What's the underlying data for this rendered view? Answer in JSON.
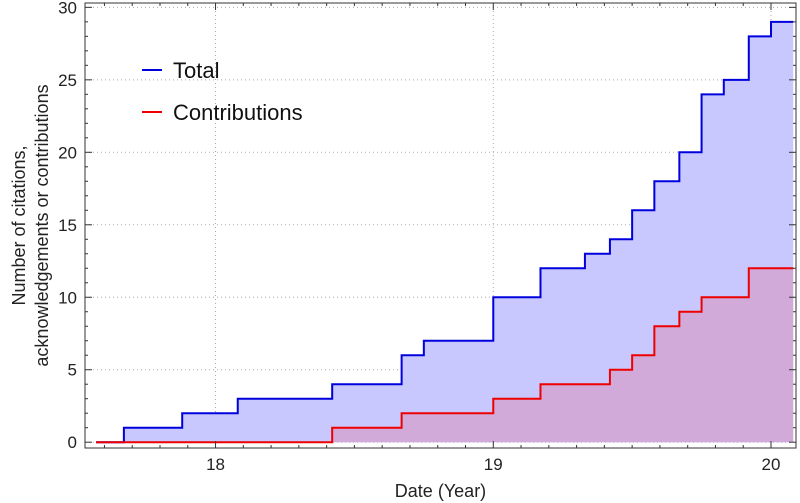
{
  "chart_data": {
    "type": "area",
    "step": true,
    "xlabel": "Date (Year)",
    "ylabel_lines": [
      "Number of citations,",
      "acknowledgements or contributions"
    ],
    "xlim": [
      17.53,
      20.09
    ],
    "ylim": [
      -0.4,
      30.3
    ],
    "xticks": [
      18,
      19,
      20
    ],
    "yticks": [
      0,
      5,
      10,
      15,
      20,
      25,
      30
    ],
    "grid": true,
    "legend": "top-left",
    "series": [
      {
        "name": "Total",
        "color": "#0000dd",
        "fill": "#c8c8ff",
        "points": [
          [
            17.57,
            0
          ],
          [
            17.67,
            1
          ],
          [
            17.88,
            2
          ],
          [
            18.08,
            3
          ],
          [
            18.42,
            4
          ],
          [
            18.67,
            6
          ],
          [
            18.75,
            7
          ],
          [
            19.0,
            10
          ],
          [
            19.17,
            12
          ],
          [
            19.33,
            13
          ],
          [
            19.42,
            14
          ],
          [
            19.5,
            16
          ],
          [
            19.58,
            18
          ],
          [
            19.67,
            20
          ],
          [
            19.75,
            24
          ],
          [
            19.83,
            25
          ],
          [
            19.92,
            28
          ],
          [
            20.0,
            29
          ],
          [
            20.08,
            29
          ]
        ]
      },
      {
        "name": "Contributions",
        "color": "#ee0000",
        "fill": "#d4a0cc",
        "points": [
          [
            17.57,
            0
          ],
          [
            18.42,
            1
          ],
          [
            18.67,
            2
          ],
          [
            19.0,
            3
          ],
          [
            19.17,
            4
          ],
          [
            19.42,
            5
          ],
          [
            19.5,
            6
          ],
          [
            19.58,
            8
          ],
          [
            19.67,
            9
          ],
          [
            19.75,
            10
          ],
          [
            19.92,
            12
          ],
          [
            20.08,
            12
          ]
        ]
      }
    ]
  }
}
